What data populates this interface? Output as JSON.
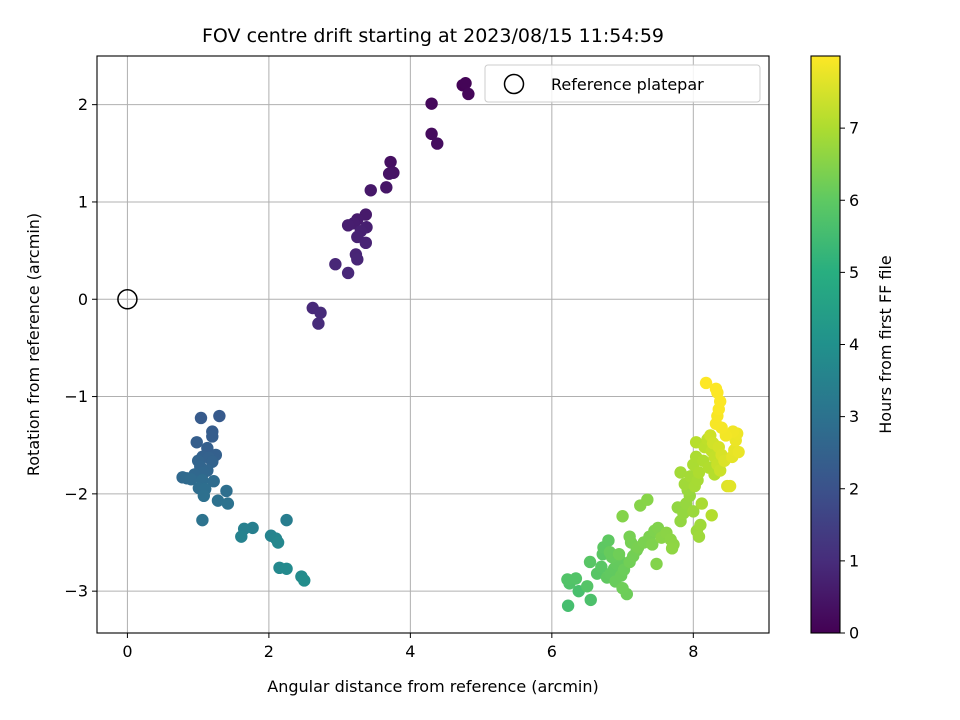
{
  "chart_data": {
    "type": "scatter",
    "title": "FOV centre drift starting at 2023/08/15 11:54:59",
    "xlabel": "Angular distance from reference (arcmin)",
    "ylabel": "Rotation from reference (arcmin)",
    "xlim": [
      -0.43,
      9.07
    ],
    "ylim": [
      -3.43,
      2.5
    ],
    "x_ticks": [
      0,
      2,
      4,
      6,
      8
    ],
    "y_ticks": [
      -3,
      -2,
      -1,
      0,
      1,
      2
    ],
    "x_tick_labels": [
      "0",
      "2",
      "4",
      "6",
      "8"
    ],
    "y_tick_labels": [
      "−3",
      "−2",
      "−1",
      "0",
      "1",
      "2"
    ],
    "grid": true,
    "legend": {
      "placement": "top-right",
      "entries": [
        "Reference platepar"
      ]
    },
    "reference_point": {
      "x": 0,
      "y": 0,
      "marker": "open-circle",
      "label": "Reference platepar"
    },
    "colorbar": {
      "label": "Hours from first FF file",
      "range": [
        0,
        8
      ],
      "ticks": [
        0,
        1,
        2,
        3,
        4,
        5,
        6,
        7
      ],
      "tick_labels": [
        "0",
        "1",
        "2",
        "3",
        "4",
        "5",
        "6",
        "7"
      ],
      "colormap": "viridis"
    },
    "series": [
      {
        "points": [
          {
            "x": 4.74,
            "y": 2.2,
            "c": 0.05
          },
          {
            "x": 4.78,
            "y": 2.22,
            "c": 0.08
          },
          {
            "x": 4.82,
            "y": 2.11,
            "c": 0.12
          },
          {
            "x": 4.3,
            "y": 2.01,
            "c": 0.18
          },
          {
            "x": 4.3,
            "y": 1.7,
            "c": 0.22
          },
          {
            "x": 4.38,
            "y": 1.6,
            "c": 0.27
          },
          {
            "x": 3.72,
            "y": 1.41,
            "c": 0.33
          },
          {
            "x": 3.76,
            "y": 1.3,
            "c": 0.38
          },
          {
            "x": 3.7,
            "y": 1.29,
            "c": 0.42
          },
          {
            "x": 3.66,
            "y": 1.15,
            "c": 0.47
          },
          {
            "x": 3.44,
            "y": 1.12,
            "c": 0.52
          },
          {
            "x": 3.37,
            "y": 0.87,
            "c": 0.56
          },
          {
            "x": 3.25,
            "y": 0.82,
            "c": 0.6
          },
          {
            "x": 3.2,
            "y": 0.78,
            "c": 0.63
          },
          {
            "x": 3.12,
            "y": 0.76,
            "c": 0.66
          },
          {
            "x": 3.38,
            "y": 0.74,
            "c": 0.69
          },
          {
            "x": 3.3,
            "y": 0.7,
            "c": 0.72
          },
          {
            "x": 3.25,
            "y": 0.64,
            "c": 0.75
          },
          {
            "x": 3.37,
            "y": 0.58,
            "c": 0.78
          },
          {
            "x": 3.23,
            "y": 0.46,
            "c": 0.81
          },
          {
            "x": 3.25,
            "y": 0.41,
            "c": 0.84
          },
          {
            "x": 2.94,
            "y": 0.36,
            "c": 0.87
          },
          {
            "x": 3.12,
            "y": 0.27,
            "c": 0.9
          },
          {
            "x": 2.62,
            "y": -0.09,
            "c": 0.93
          },
          {
            "x": 2.73,
            "y": -0.14,
            "c": 0.96
          },
          {
            "x": 2.7,
            "y": -0.25,
            "c": 0.99
          },
          {
            "x": 1.3,
            "y": -1.2,
            "c": 2.25
          },
          {
            "x": 1.04,
            "y": -1.22,
            "c": 2.28
          },
          {
            "x": 1.2,
            "y": -1.36,
            "c": 2.31
          },
          {
            "x": 1.2,
            "y": -1.41,
            "c": 2.34
          },
          {
            "x": 0.98,
            "y": -1.47,
            "c": 2.37
          },
          {
            "x": 1.13,
            "y": -1.53,
            "c": 2.4
          },
          {
            "x": 1.25,
            "y": -1.6,
            "c": 2.43
          },
          {
            "x": 1.06,
            "y": -1.62,
            "c": 2.46
          },
          {
            "x": 1.15,
            "y": -1.63,
            "c": 2.49
          },
          {
            "x": 1.2,
            "y": -1.67,
            "c": 2.52
          },
          {
            "x": 1.0,
            "y": -1.66,
            "c": 2.55
          },
          {
            "x": 1.03,
            "y": -1.72,
            "c": 2.58
          },
          {
            "x": 1.13,
            "y": -1.76,
            "c": 2.61
          },
          {
            "x": 1.08,
            "y": -1.78,
            "c": 2.64
          },
          {
            "x": 0.95,
            "y": -1.8,
            "c": 2.67
          },
          {
            "x": 0.78,
            "y": -1.83,
            "c": 2.7
          },
          {
            "x": 0.84,
            "y": -1.84,
            "c": 2.73
          },
          {
            "x": 0.9,
            "y": -1.85,
            "c": 2.76
          },
          {
            "x": 1.06,
            "y": -1.86,
            "c": 2.79
          },
          {
            "x": 1.22,
            "y": -1.87,
            "c": 2.82
          },
          {
            "x": 1.01,
            "y": -1.94,
            "c": 2.85
          },
          {
            "x": 1.1,
            "y": -1.95,
            "c": 2.88
          },
          {
            "x": 1.4,
            "y": -1.97,
            "c": 2.91
          },
          {
            "x": 1.08,
            "y": -2.02,
            "c": 2.94
          },
          {
            "x": 1.28,
            "y": -2.07,
            "c": 2.97
          },
          {
            "x": 1.42,
            "y": -2.1,
            "c": 3.0
          },
          {
            "x": 1.06,
            "y": -2.27,
            "c": 3.03
          },
          {
            "x": 2.25,
            "y": -2.27,
            "c": 3.4
          },
          {
            "x": 1.77,
            "y": -2.35,
            "c": 3.45
          },
          {
            "x": 1.65,
            "y": -2.36,
            "c": 3.5
          },
          {
            "x": 1.61,
            "y": -2.44,
            "c": 3.55
          },
          {
            "x": 2.03,
            "y": -2.43,
            "c": 3.6
          },
          {
            "x": 2.1,
            "y": -2.46,
            "c": 3.65
          },
          {
            "x": 2.13,
            "y": -2.5,
            "c": 3.7
          },
          {
            "x": 2.15,
            "y": -2.76,
            "c": 3.75
          },
          {
            "x": 2.25,
            "y": -2.77,
            "c": 3.8
          },
          {
            "x": 2.46,
            "y": -2.85,
            "c": 3.85
          },
          {
            "x": 2.5,
            "y": -2.89,
            "c": 3.9
          },
          {
            "x": 6.23,
            "y": -3.15,
            "c": 5.6
          },
          {
            "x": 6.38,
            "y": -3.0,
            "c": 5.65
          },
          {
            "x": 6.55,
            "y": -3.09,
            "c": 5.7
          },
          {
            "x": 6.25,
            "y": -2.92,
            "c": 5.75
          },
          {
            "x": 6.22,
            "y": -2.88,
            "c": 5.78
          },
          {
            "x": 6.34,
            "y": -2.87,
            "c": 5.8
          },
          {
            "x": 6.5,
            "y": -2.95,
            "c": 5.83
          },
          {
            "x": 6.64,
            "y": -2.82,
            "c": 5.86
          },
          {
            "x": 6.54,
            "y": -2.7,
            "c": 5.88
          },
          {
            "x": 6.7,
            "y": -2.75,
            "c": 5.9
          },
          {
            "x": 6.72,
            "y": -2.62,
            "c": 5.93
          },
          {
            "x": 6.73,
            "y": -2.55,
            "c": 5.96
          },
          {
            "x": 6.8,
            "y": -2.48,
            "c": 5.98
          },
          {
            "x": 6.78,
            "y": -2.86,
            "c": 6.0
          },
          {
            "x": 6.83,
            "y": -2.82,
            "c": 6.02
          },
          {
            "x": 6.88,
            "y": -2.77,
            "c": 6.04
          },
          {
            "x": 6.92,
            "y": -2.72,
            "c": 6.06
          },
          {
            "x": 6.96,
            "y": -2.68,
            "c": 6.08
          },
          {
            "x": 6.85,
            "y": -2.65,
            "c": 6.1
          },
          {
            "x": 6.82,
            "y": -2.6,
            "c": 6.12
          },
          {
            "x": 6.9,
            "y": -2.9,
            "c": 6.14
          },
          {
            "x": 6.98,
            "y": -2.84,
            "c": 6.16
          },
          {
            "x": 7.02,
            "y": -2.78,
            "c": 6.18
          },
          {
            "x": 7.06,
            "y": -3.03,
            "c": 6.2
          },
          {
            "x": 7.0,
            "y": -2.97,
            "c": 6.22
          },
          {
            "x": 6.95,
            "y": -2.62,
            "c": 6.24
          },
          {
            "x": 7.1,
            "y": -2.7,
            "c": 6.26
          },
          {
            "x": 7.15,
            "y": -2.64,
            "c": 6.28
          },
          {
            "x": 7.2,
            "y": -2.58,
            "c": 6.3
          },
          {
            "x": 7.12,
            "y": -2.5,
            "c": 6.32
          },
          {
            "x": 7.1,
            "y": -2.44,
            "c": 6.34
          },
          {
            "x": 7.22,
            "y": -2.55,
            "c": 6.36
          },
          {
            "x": 7.3,
            "y": -2.5,
            "c": 6.38
          },
          {
            "x": 7.38,
            "y": -2.44,
            "c": 6.4
          },
          {
            "x": 7.45,
            "y": -2.38,
            "c": 6.42
          },
          {
            "x": 7.42,
            "y": -2.52,
            "c": 6.44
          },
          {
            "x": 7.5,
            "y": -2.35,
            "c": 6.46
          },
          {
            "x": 7.48,
            "y": -2.72,
            "c": 6.48
          },
          {
            "x": 7.0,
            "y": -2.23,
            "c": 6.5
          },
          {
            "x": 7.25,
            "y": -2.12,
            "c": 6.52
          },
          {
            "x": 7.35,
            "y": -2.06,
            "c": 6.54
          },
          {
            "x": 7.55,
            "y": -2.45,
            "c": 6.56
          },
          {
            "x": 7.62,
            "y": -2.4,
            "c": 6.58
          },
          {
            "x": 7.68,
            "y": -2.47,
            "c": 6.6
          },
          {
            "x": 7.72,
            "y": -2.52,
            "c": 6.62
          },
          {
            "x": 7.7,
            "y": -2.56,
            "c": 6.64
          },
          {
            "x": 7.78,
            "y": -2.14,
            "c": 6.66
          },
          {
            "x": 7.82,
            "y": -2.28,
            "c": 6.68
          },
          {
            "x": 7.86,
            "y": -2.2,
            "c": 6.7
          },
          {
            "x": 7.9,
            "y": -2.1,
            "c": 6.72
          },
          {
            "x": 7.95,
            "y": -2.02,
            "c": 6.74
          },
          {
            "x": 7.92,
            "y": -1.96,
            "c": 6.76
          },
          {
            "x": 8.0,
            "y": -2.18,
            "c": 6.78
          },
          {
            "x": 8.05,
            "y": -2.38,
            "c": 6.8
          },
          {
            "x": 8.08,
            "y": -2.44,
            "c": 6.82
          },
          {
            "x": 8.1,
            "y": -2.32,
            "c": 6.84
          },
          {
            "x": 7.88,
            "y": -1.9,
            "c": 6.86
          },
          {
            "x": 7.82,
            "y": -1.78,
            "c": 6.88
          },
          {
            "x": 7.96,
            "y": -1.82,
            "c": 6.9
          },
          {
            "x": 8.02,
            "y": -1.92,
            "c": 6.92
          },
          {
            "x": 8.06,
            "y": -1.86,
            "c": 6.94
          },
          {
            "x": 8.12,
            "y": -2.1,
            "c": 6.96
          },
          {
            "x": 8.0,
            "y": -1.7,
            "c": 6.98
          },
          {
            "x": 8.04,
            "y": -1.62,
            "c": 7.0
          },
          {
            "x": 8.08,
            "y": -1.78,
            "c": 7.02
          },
          {
            "x": 8.14,
            "y": -1.66,
            "c": 7.04
          },
          {
            "x": 8.22,
            "y": -1.73,
            "c": 7.06
          },
          {
            "x": 8.26,
            "y": -2.22,
            "c": 7.08
          },
          {
            "x": 8.3,
            "y": -1.8,
            "c": 7.1
          },
          {
            "x": 8.04,
            "y": -1.47,
            "c": 7.14
          },
          {
            "x": 8.16,
            "y": -1.52,
            "c": 7.18
          },
          {
            "x": 8.2,
            "y": -1.44,
            "c": 7.22
          },
          {
            "x": 8.26,
            "y": -1.56,
            "c": 7.26
          },
          {
            "x": 8.3,
            "y": -1.62,
            "c": 7.3
          },
          {
            "x": 8.34,
            "y": -1.7,
            "c": 7.34
          },
          {
            "x": 8.38,
            "y": -1.76,
            "c": 7.38
          },
          {
            "x": 8.24,
            "y": -1.4,
            "c": 7.42
          },
          {
            "x": 8.28,
            "y": -1.48,
            "c": 7.46
          },
          {
            "x": 8.36,
            "y": -1.52,
            "c": 7.5
          },
          {
            "x": 8.4,
            "y": -1.6,
            "c": 7.54
          },
          {
            "x": 8.44,
            "y": -1.66,
            "c": 7.58
          },
          {
            "x": 8.48,
            "y": -1.92,
            "c": 7.62
          },
          {
            "x": 8.52,
            "y": -1.92,
            "c": 7.66
          },
          {
            "x": 8.55,
            "y": -1.62,
            "c": 7.7
          },
          {
            "x": 8.58,
            "y": -1.55,
            "c": 7.73
          },
          {
            "x": 8.64,
            "y": -1.57,
            "c": 7.76
          },
          {
            "x": 8.6,
            "y": -1.45,
            "c": 7.79
          },
          {
            "x": 8.62,
            "y": -1.38,
            "c": 7.82
          },
          {
            "x": 8.56,
            "y": -1.36,
            "c": 7.85
          },
          {
            "x": 8.46,
            "y": -1.4,
            "c": 7.88
          },
          {
            "x": 8.4,
            "y": -1.32,
            "c": 7.9
          },
          {
            "x": 8.32,
            "y": -1.28,
            "c": 7.92
          },
          {
            "x": 8.34,
            "y": -1.2,
            "c": 7.94
          },
          {
            "x": 8.36,
            "y": -1.13,
            "c": 7.96
          },
          {
            "x": 8.38,
            "y": -1.05,
            "c": 7.97
          },
          {
            "x": 8.34,
            "y": -0.96,
            "c": 7.98
          },
          {
            "x": 8.32,
            "y": -0.92,
            "c": 7.99
          },
          {
            "x": 8.18,
            "y": -0.86,
            "c": 8.0
          }
        ]
      }
    ]
  }
}
